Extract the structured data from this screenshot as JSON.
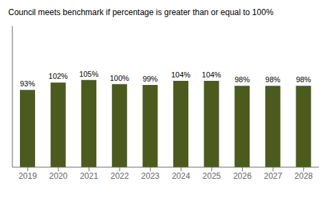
{
  "chart_data": {
    "type": "bar",
    "title": "Council meets benchmark if percentage is greater than or equal to 100%",
    "categories": [
      "2019",
      "2020",
      "2021",
      "2022",
      "2023",
      "2024",
      "2025",
      "2026",
      "2027",
      "2028"
    ],
    "values": [
      93,
      102,
      105,
      100,
      99,
      104,
      104,
      98,
      98,
      98
    ],
    "value_labels": [
      "93%",
      "102%",
      "105%",
      "100%",
      "99%",
      "104%",
      "104%",
      "98%",
      "98%",
      "98%"
    ],
    "color": "#4d5a1e",
    "ylim": [
      0,
      170
    ],
    "data_labels": true,
    "tick_labels": "x"
  }
}
